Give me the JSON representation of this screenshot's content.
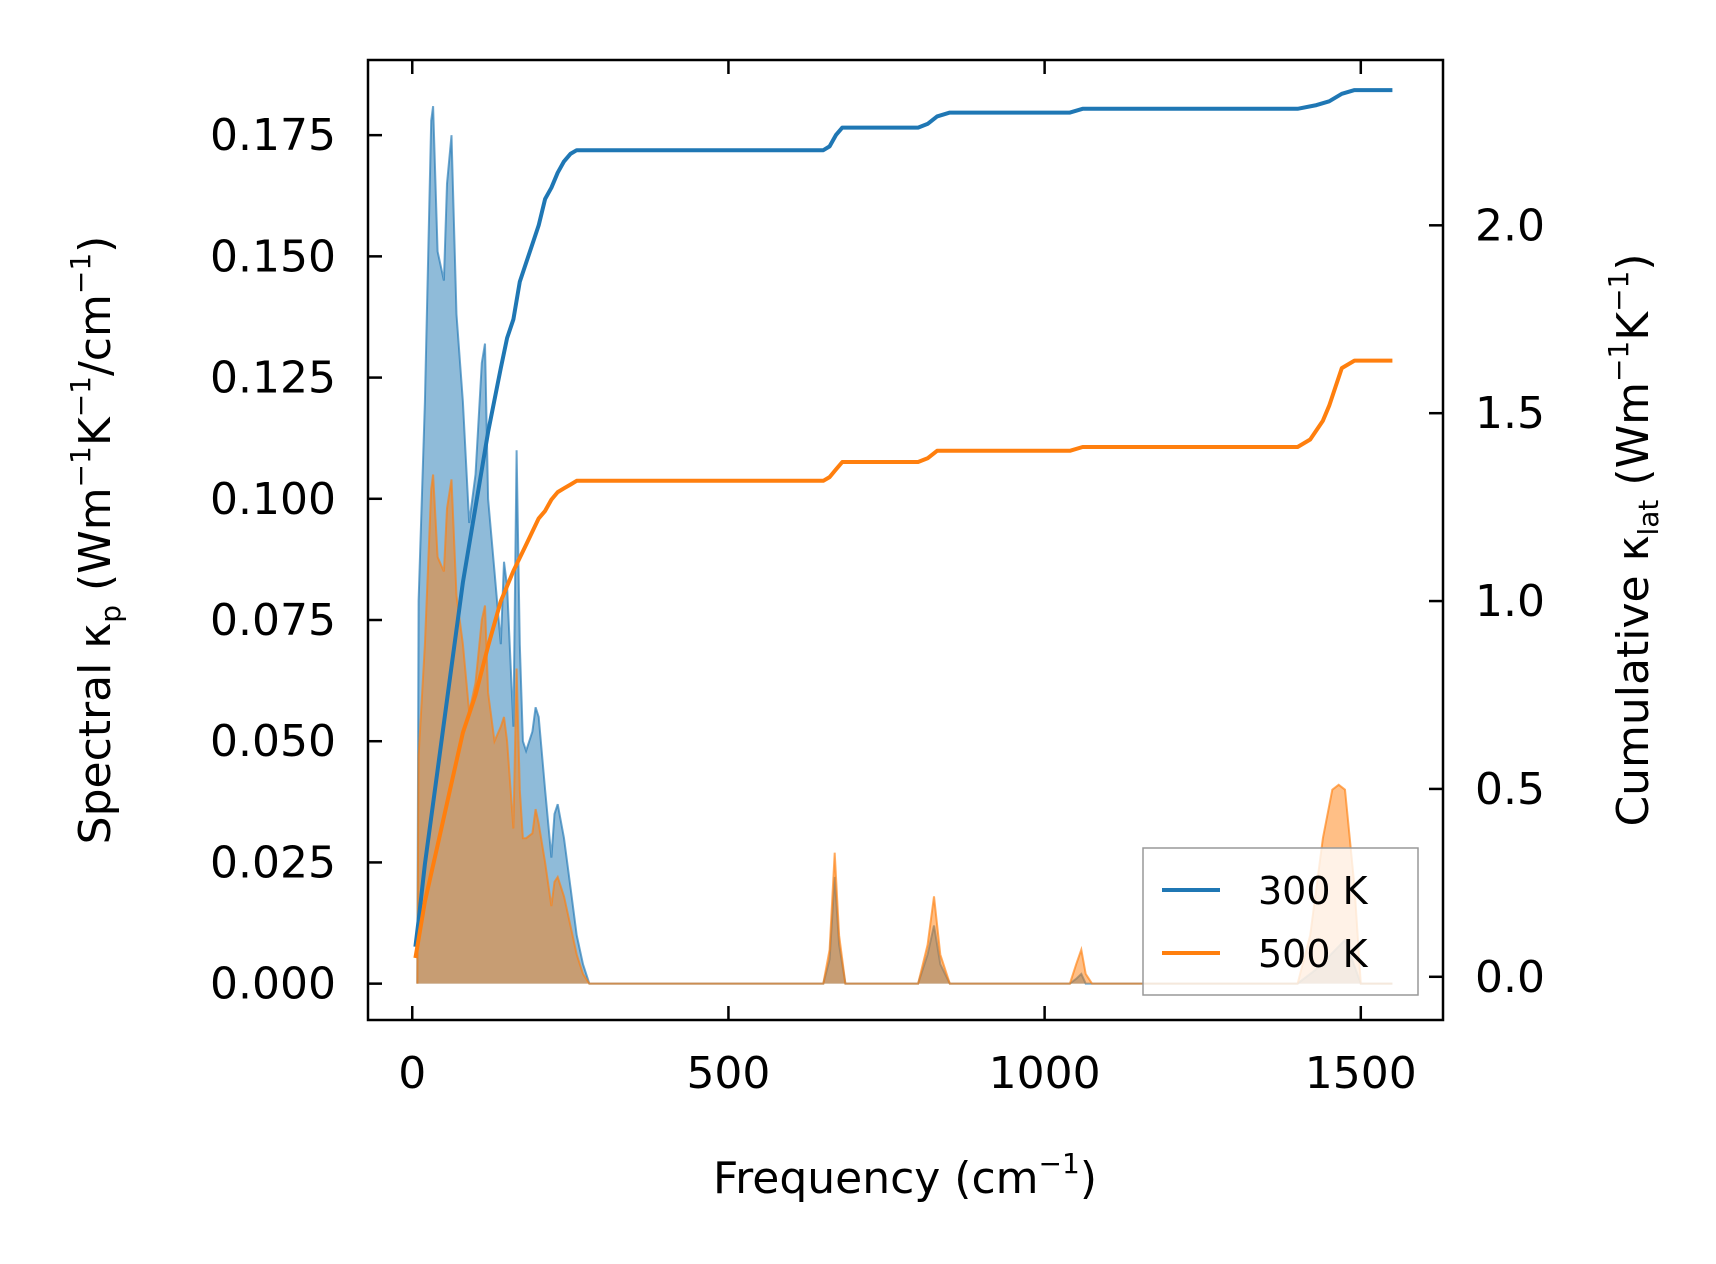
{
  "chart_data": {
    "type": "line",
    "title": "",
    "xlabel": {
      "main": "Frequency (cm",
      "sup": "−1",
      "end": ")"
    },
    "ylabel_left": {
      "prefix": "Spectral κ",
      "sub": "p",
      "mid": " (Wm",
      "sup1": "−1",
      "mid2": "K",
      "sup2": "−1",
      "mid3": "/cm",
      "sup3": "−1",
      "end": ")"
    },
    "ylabel_right": {
      "prefix": "Cumulative κ",
      "sub": "lat",
      "mid": " (Wm",
      "sup1": "−1",
      "mid2": "K",
      "sup2": "−1",
      "end": ")"
    },
    "xlim": [
      -70,
      1630
    ],
    "ylim_left": [
      -0.0075,
      0.1905
    ],
    "ylim_right": [
      -0.115,
      2.44
    ],
    "xticks": [
      0,
      500,
      1000,
      1500
    ],
    "yticks_left": [
      0.0,
      0.025,
      0.05,
      0.075,
      0.1,
      0.125,
      0.15,
      0.175
    ],
    "yticks_right": [
      0.0,
      0.5,
      1.0,
      1.5,
      2.0
    ],
    "xtick_labels": [
      "0",
      "500",
      "1000",
      "1500"
    ],
    "ytick_labels_left": [
      "0.000",
      "0.025",
      "0.050",
      "0.075",
      "0.100",
      "0.125",
      "0.150",
      "0.175"
    ],
    "ytick_labels_right": [
      "0.0",
      "0.5",
      "1.0",
      "1.5",
      "2.0"
    ],
    "legend": {
      "position": "lower-right",
      "entries": [
        "300 K",
        "500 K"
      ]
    },
    "colors": {
      "300 K": "#1f77b4",
      "500 K": "#ff7f0e"
    },
    "series": [
      {
        "name": "300 K",
        "axis": "left",
        "kind": "spectral-fill",
        "x": [
          8,
          10,
          20,
          30,
          33,
          40,
          50,
          55,
          62,
          70,
          80,
          90,
          100,
          110,
          115,
          120,
          130,
          140,
          145,
          150,
          160,
          165,
          170,
          175,
          180,
          190,
          195,
          200,
          210,
          220,
          225,
          230,
          240,
          250,
          260,
          270,
          280,
          650,
          660,
          668,
          675,
          685,
          800,
          815,
          825,
          835,
          850,
          1040,
          1050,
          1058,
          1065,
          1075,
          1400,
          1430,
          1460,
          1475,
          1500,
          1550
        ],
        "y": [
          0.0,
          0.079,
          0.12,
          0.178,
          0.181,
          0.151,
          0.145,
          0.165,
          0.175,
          0.138,
          0.12,
          0.095,
          0.105,
          0.128,
          0.132,
          0.1,
          0.085,
          0.07,
          0.087,
          0.082,
          0.053,
          0.11,
          0.07,
          0.05,
          0.048,
          0.052,
          0.057,
          0.055,
          0.04,
          0.026,
          0.035,
          0.037,
          0.03,
          0.02,
          0.01,
          0.004,
          0.0,
          0.0,
          0.005,
          0.022,
          0.008,
          0.0,
          0.0,
          0.006,
          0.012,
          0.004,
          0.0,
          0.0,
          0.001,
          0.002,
          0.0,
          0.0,
          0.0,
          0.003,
          0.007,
          0.009,
          0.0,
          0.0
        ]
      },
      {
        "name": "500 K",
        "axis": "left",
        "kind": "spectral-fill",
        "x": [
          8,
          10,
          20,
          30,
          33,
          40,
          50,
          55,
          62,
          70,
          80,
          90,
          100,
          110,
          115,
          120,
          130,
          140,
          145,
          150,
          160,
          165,
          170,
          175,
          180,
          190,
          195,
          200,
          210,
          220,
          225,
          230,
          240,
          250,
          260,
          270,
          280,
          650,
          660,
          668,
          675,
          685,
          800,
          815,
          825,
          835,
          850,
          1040,
          1050,
          1058,
          1065,
          1075,
          1400,
          1420,
          1440,
          1455,
          1465,
          1475,
          1490,
          1500,
          1550
        ],
        "y": [
          0.0,
          0.047,
          0.07,
          0.102,
          0.105,
          0.088,
          0.085,
          0.098,
          0.104,
          0.08,
          0.07,
          0.056,
          0.062,
          0.075,
          0.078,
          0.06,
          0.05,
          0.053,
          0.055,
          0.05,
          0.032,
          0.065,
          0.04,
          0.03,
          0.03,
          0.031,
          0.036,
          0.033,
          0.025,
          0.016,
          0.021,
          0.022,
          0.018,
          0.012,
          0.006,
          0.002,
          0.0,
          0.0,
          0.007,
          0.027,
          0.01,
          0.0,
          0.0,
          0.008,
          0.018,
          0.006,
          0.0,
          0.0,
          0.004,
          0.007,
          0.002,
          0.0,
          0.0,
          0.01,
          0.03,
          0.04,
          0.041,
          0.04,
          0.02,
          0.0,
          0.0
        ]
      },
      {
        "name": "300 K",
        "axis": "right",
        "kind": "cumulative-line",
        "x": [
          5,
          10,
          20,
          40,
          60,
          80,
          100,
          120,
          140,
          150,
          160,
          170,
          180,
          190,
          200,
          210,
          220,
          230,
          240,
          250,
          260,
          270,
          280,
          650,
          660,
          670,
          680,
          690,
          700,
          800,
          815,
          830,
          850,
          1040,
          1060,
          1070,
          1400,
          1430,
          1450,
          1470,
          1490,
          1500,
          1550
        ],
        "y": [
          0.08,
          0.15,
          0.3,
          0.55,
          0.8,
          1.05,
          1.25,
          1.45,
          1.62,
          1.7,
          1.75,
          1.85,
          1.9,
          1.95,
          2.0,
          2.07,
          2.1,
          2.14,
          2.17,
          2.19,
          2.2,
          2.2,
          2.2,
          2.2,
          2.21,
          2.24,
          2.26,
          2.26,
          2.26,
          2.26,
          2.27,
          2.29,
          2.3,
          2.3,
          2.31,
          2.31,
          2.31,
          2.32,
          2.33,
          2.35,
          2.36,
          2.36,
          2.36
        ]
      },
      {
        "name": "500 K",
        "axis": "right",
        "kind": "cumulative-line",
        "x": [
          5,
          10,
          20,
          40,
          60,
          80,
          100,
          120,
          140,
          160,
          180,
          200,
          210,
          220,
          230,
          240,
          250,
          260,
          270,
          280,
          650,
          660,
          670,
          680,
          690,
          700,
          800,
          815,
          830,
          850,
          1040,
          1060,
          1070,
          1400,
          1420,
          1440,
          1450,
          1460,
          1470,
          1490,
          1500,
          1550
        ],
        "y": [
          0.05,
          0.1,
          0.2,
          0.35,
          0.5,
          0.65,
          0.75,
          0.88,
          1.0,
          1.08,
          1.15,
          1.22,
          1.24,
          1.27,
          1.29,
          1.3,
          1.31,
          1.32,
          1.32,
          1.32,
          1.32,
          1.33,
          1.35,
          1.37,
          1.37,
          1.37,
          1.37,
          1.38,
          1.4,
          1.4,
          1.4,
          1.41,
          1.41,
          1.41,
          1.43,
          1.48,
          1.52,
          1.57,
          1.62,
          1.64,
          1.64,
          1.64
        ]
      }
    ]
  }
}
